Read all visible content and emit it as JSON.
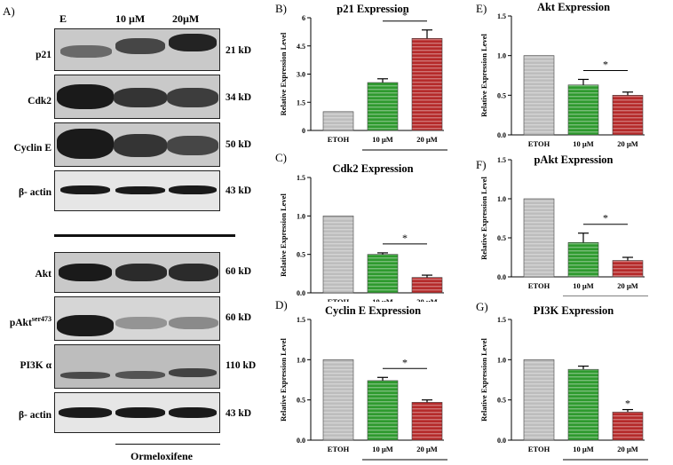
{
  "blot": {
    "panel_label": "A)",
    "lanes": [
      "E",
      "10 µM",
      "20µM"
    ],
    "top_blots": [
      {
        "name": "p21",
        "kd": "21 kD"
      },
      {
        "name": "Cdk2",
        "kd": "34 kD"
      },
      {
        "name": "Cyclin E",
        "kd": "50 kD"
      },
      {
        "name": "β- actin",
        "kd": "43 kD"
      }
    ],
    "bottom_blots": [
      {
        "name": "Akt",
        "kd": "60 kD"
      },
      {
        "name": "pAkt",
        "sup": "ser473",
        "kd": "60 kD"
      },
      {
        "name": "PI3K α",
        "kd": "110 kD"
      },
      {
        "name": "β- actin",
        "kd": "43 kD"
      }
    ],
    "treatment": "Ormeloxifene"
  },
  "colors": {
    "etoh": "#bdbdbd",
    "ten": "#2e9a2e",
    "twenty": "#b52a2a"
  },
  "chart_data": [
    {
      "panel": "B)",
      "type": "bar",
      "title": "p21 Expression",
      "ylabel": "Relative Expression Level",
      "categories": [
        "ETOH",
        "10 µM",
        "20 µM"
      ],
      "values": [
        1.0,
        2.55,
        4.9
      ],
      "errors": [
        0,
        0.2,
        0.45
      ],
      "ylim": [
        0,
        6
      ],
      "yticks": [
        "0",
        "1.5",
        "3.0",
        "4.5",
        "6"
      ],
      "ytick_values": [
        0,
        1.5,
        3.0,
        4.5,
        6
      ],
      "significance": {
        "from": 1,
        "to": 2,
        "label": "*"
      },
      "treatment": ""
    },
    {
      "panel": "C)",
      "type": "bar",
      "title": "Cdk2 Expression",
      "ylabel": "Relative Expression Level",
      "categories": [
        "ETOH",
        "10 µM",
        "20 µM"
      ],
      "values": [
        1.0,
        0.5,
        0.2
      ],
      "errors": [
        0,
        0.02,
        0.03
      ],
      "ylim": [
        0,
        1.5
      ],
      "yticks": [
        "0.0",
        "0.5",
        "1.0",
        "1.5"
      ],
      "ytick_values": [
        0,
        0.5,
        1.0,
        1.5
      ],
      "significance": {
        "from": 1,
        "to": 2,
        "label": "*"
      },
      "treatment": ""
    },
    {
      "panel": "D)",
      "type": "bar",
      "title": "Cyclin E Expression",
      "ylabel": "Relative Expression Level",
      "categories": [
        "ETOH",
        "10 µM",
        "20 µM"
      ],
      "values": [
        1.0,
        0.74,
        0.47
      ],
      "errors": [
        0,
        0.04,
        0.03
      ],
      "ylim": [
        0,
        1.5
      ],
      "yticks": [
        "0.0",
        "0.5",
        "1.0",
        "1.5"
      ],
      "ytick_values": [
        0,
        0.5,
        1.0,
        1.5
      ],
      "significance": {
        "from": 1,
        "to": 2,
        "label": "*"
      },
      "treatment": "Ormeloxifene"
    },
    {
      "panel": "E)",
      "type": "bar",
      "title": "Akt Expression",
      "ylabel": "Relative Expression Level",
      "categories": [
        "ETOH",
        "10 µM",
        "20 µM"
      ],
      "values": [
        1.0,
        0.63,
        0.5
      ],
      "errors": [
        0,
        0.07,
        0.04
      ],
      "ylim": [
        0,
        1.5
      ],
      "yticks": [
        "0.0",
        "0.5",
        "1.0",
        "1.5"
      ],
      "ytick_values": [
        0,
        0.5,
        1.0,
        1.5
      ],
      "significance": {
        "from": 1,
        "to": 2,
        "label": "*"
      },
      "treatment": ""
    },
    {
      "panel": "F)",
      "type": "bar",
      "title": "pAkt Expression",
      "ylabel": "Relative Expression Level",
      "categories": [
        "ETOH",
        "10 µM",
        "20 µM"
      ],
      "values": [
        1.0,
        0.44,
        0.21
      ],
      "errors": [
        0,
        0.12,
        0.04
      ],
      "ylim": [
        0,
        1.5
      ],
      "yticks": [
        "0.0",
        "0.5",
        "1.0",
        "1.5"
      ],
      "ytick_values": [
        0,
        0.5,
        1.0,
        1.5
      ],
      "significance": {
        "from": 1,
        "to": 2,
        "label": "*"
      },
      "treatment": ""
    },
    {
      "panel": "G)",
      "type": "bar",
      "title": "PI3K Expression",
      "ylabel": "Relative Expression Level",
      "categories": [
        "ETOH",
        "10 µM",
        "20 µM"
      ],
      "values": [
        1.0,
        0.88,
        0.35
      ],
      "errors": [
        0,
        0.04,
        0.03
      ],
      "ylim": [
        0,
        1.5
      ],
      "yticks": [
        "0.0",
        "0.5",
        "1.0",
        "1.5"
      ],
      "ytick_values": [
        0,
        0.5,
        1.0,
        1.5
      ],
      "significance": {
        "from": 2,
        "to": 2,
        "label": "*"
      },
      "treatment": "Ormeloxifene"
    }
  ]
}
